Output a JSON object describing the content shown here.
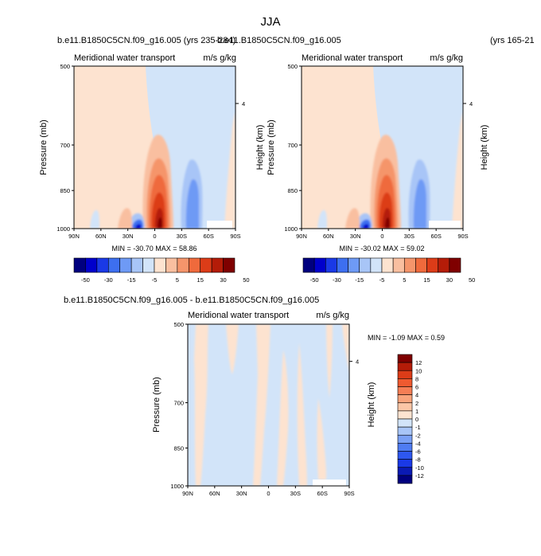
{
  "figure": {
    "title": "JJA",
    "top_left_subtitle": "b.e11.B1850C5CN.f09_g16.005 (yrs 235-284)",
    "top_right_subtitle": "b.e11.B1850C5CN.f09_g16.005",
    "top_right_years": "(yrs 165-21",
    "bottom_subtitle": "b.e11.B1850C5CN.f09_g16.005 - b.e11.B1850C5CN.f09_g16.005"
  },
  "panel_labels": {
    "left_string": "Meridional water transport",
    "right_string": "m/s g/kg",
    "ylabel": "Pressure (mb)",
    "right_ylabel": "Height (km)"
  },
  "colors": {
    "abs_levels": [
      "#00007f",
      "#0000cc",
      "#1a39e6",
      "#3d6ff0",
      "#6e9af5",
      "#a8c5f7",
      "#d2e4f9",
      "#fde3d0",
      "#f9bfa0",
      "#f5956b",
      "#ef6a3c",
      "#dc3c18",
      "#b41c08",
      "#7f0000"
    ],
    "diff_levels": [
      "#00007f",
      "#0a1ab4",
      "#1a39e6",
      "#2e57ef",
      "#4f7cf2",
      "#7aa0f5",
      "#a8c5f7",
      "#d2e4f9",
      "#fde3d0",
      "#fbc6a6",
      "#f9a47c",
      "#f57e55",
      "#ef5a30",
      "#dc3c18",
      "#b41c08",
      "#7f0000"
    ]
  },
  "chart_data": [
    {
      "type": "heatmap",
      "title": "b.e11.B1850C5CN.f09_g16.005 (yrs 235-284)",
      "left_string": "Meridional water transport",
      "right_string": "m/s g/kg",
      "xlabel": "",
      "ylabel": "Pressure (mb)",
      "right_ylabel": "Height (km)",
      "x_ticks": [
        "90N",
        "60N",
        "30N",
        "0",
        "30S",
        "60S",
        "90S"
      ],
      "y_ticks": [
        500,
        700,
        850,
        1000
      ],
      "y_scale": "log",
      "ylim": [
        1000,
        500
      ],
      "right_axis_ticks": [
        "4"
      ],
      "min_max": "MIN = -30.70  MAX =  58.86",
      "colorbar_labels": [
        "-50",
        "-30",
        "-15",
        "-5",
        "5",
        "15",
        "30",
        "50"
      ],
      "colorbar_levels": [
        -50,
        -40,
        -30,
        -20,
        -15,
        -10,
        -5,
        0,
        5,
        10,
        15,
        20,
        30,
        40,
        50
      ],
      "features": [
        {
          "lat": 5,
          "p_top": 620,
          "value": 58.86
        },
        {
          "lat": 18,
          "p_top": 980,
          "value": -30.7
        },
        {
          "lat": -20,
          "p_top": 720,
          "value": -15
        }
      ]
    },
    {
      "type": "heatmap",
      "title": "b.e11.B1850C5CN.f09_g16.005 (yrs 165-21",
      "left_string": "Meridional water transport",
      "right_string": "m/s g/kg",
      "xlabel": "",
      "ylabel": "Pressure (mb)",
      "right_ylabel": "Height (km)",
      "x_ticks": [
        "90N",
        "60N",
        "30N",
        "0",
        "30S",
        "60S",
        "90S"
      ],
      "y_ticks": [
        500,
        700,
        850,
        1000
      ],
      "y_scale": "log",
      "ylim": [
        1000,
        500
      ],
      "right_axis_ticks": [
        "4"
      ],
      "min_max": "MIN = -30.02  MAX =  59.02",
      "colorbar_labels": [
        "-50",
        "-30",
        "-15",
        "-5",
        "5",
        "15",
        "30",
        "50"
      ],
      "colorbar_levels": [
        -50,
        -40,
        -30,
        -20,
        -15,
        -10,
        -5,
        0,
        5,
        10,
        15,
        20,
        30,
        40,
        50
      ],
      "features": [
        {
          "lat": 5,
          "p_top": 620,
          "value": 59.02
        },
        {
          "lat": 18,
          "p_top": 980,
          "value": -30.02
        },
        {
          "lat": -20,
          "p_top": 720,
          "value": -15
        }
      ]
    },
    {
      "type": "heatmap",
      "title": "b.e11.B1850C5CN.f09_g16.005 - b.e11.B1850C5CN.f09_g16.005",
      "left_string": "Meridional water transport",
      "right_string": "m/s g/kg",
      "xlabel": "",
      "ylabel": "Pressure (mb)",
      "right_ylabel": "Height (km)",
      "x_ticks": [
        "90N",
        "60N",
        "30N",
        "0",
        "30S",
        "60S",
        "90S"
      ],
      "y_ticks": [
        500,
        700,
        850,
        1000
      ],
      "y_scale": "log",
      "ylim": [
        1000,
        500
      ],
      "right_axis_ticks": [
        "4"
      ],
      "min_max": "MIN = -1.09  MAX =  0.59",
      "colorbar_labels": [
        "12",
        "10",
        "8",
        "6",
        "4",
        "2",
        "1",
        "0",
        "-1",
        "-2",
        "-4",
        "-6",
        "-8",
        "-10",
        "-12"
      ],
      "colorbar_levels": [
        -12,
        -10,
        -8,
        -6,
        -4,
        -2,
        -1,
        0,
        1,
        2,
        4,
        6,
        8,
        10,
        12
      ]
    }
  ]
}
